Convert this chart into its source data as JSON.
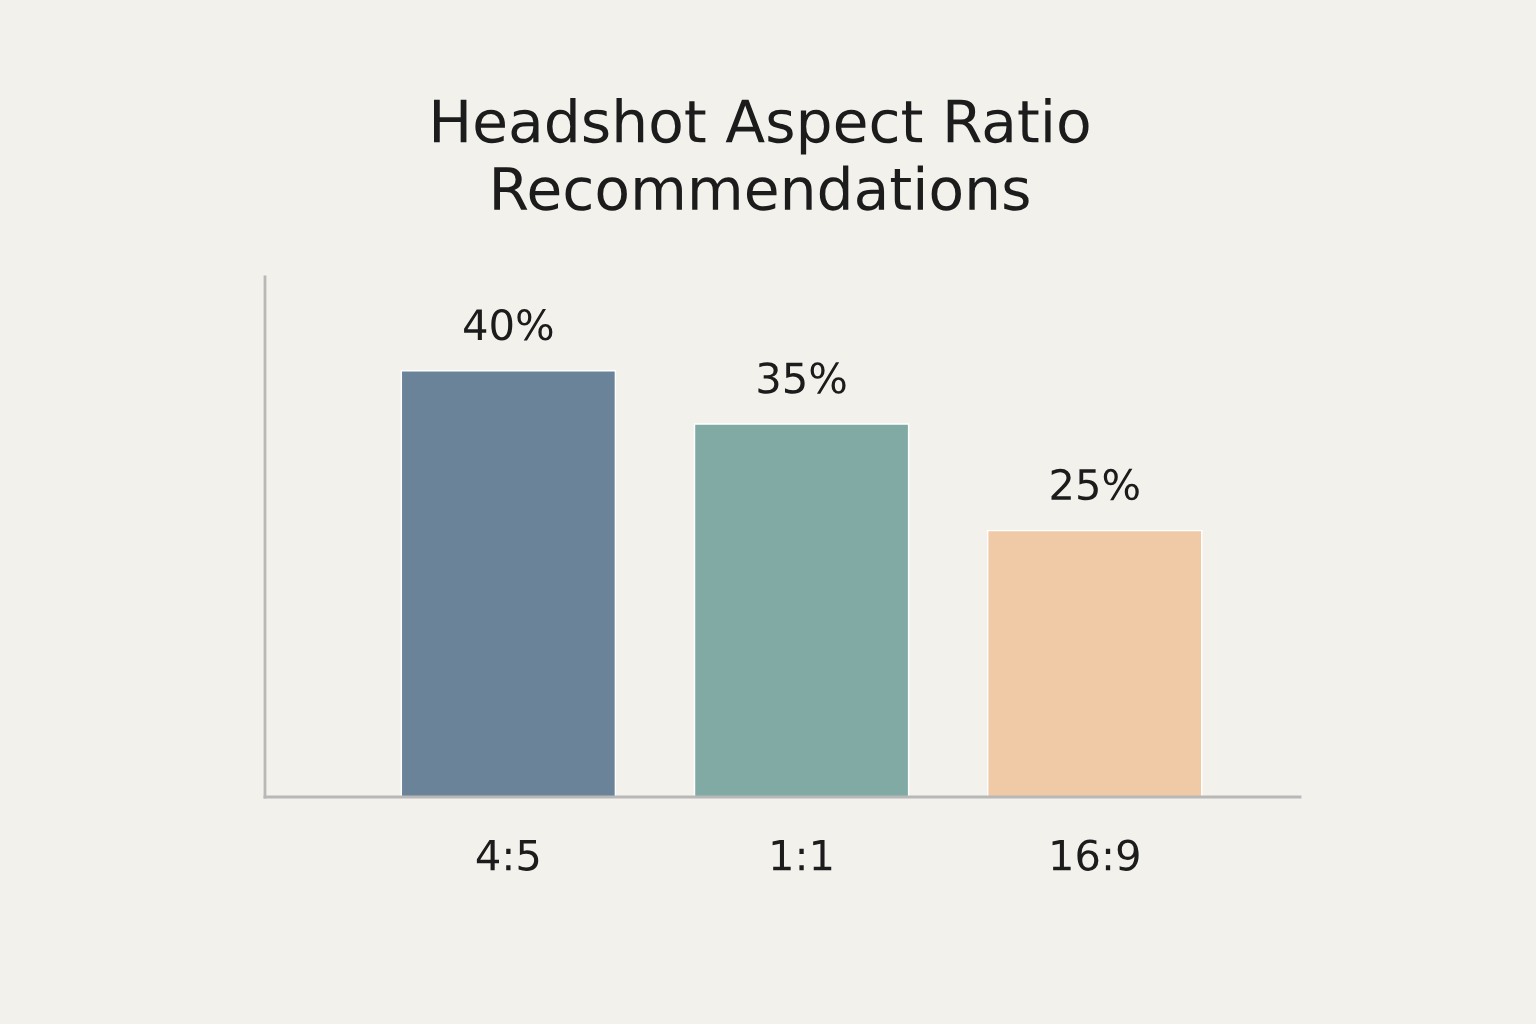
{
  "chart_data": {
    "type": "bar",
    "title": "Headshot Aspect Ratio\nRecommendations",
    "categories": [
      "4:5",
      "1:1",
      "16:9"
    ],
    "values": [
      40,
      35,
      25
    ],
    "colors": [
      "#6b8399",
      "#80aaa3",
      "#f0c9a6"
    ],
    "value_labels": [
      "40%",
      "35%",
      "25%"
    ],
    "grid": false,
    "legend": false
  }
}
